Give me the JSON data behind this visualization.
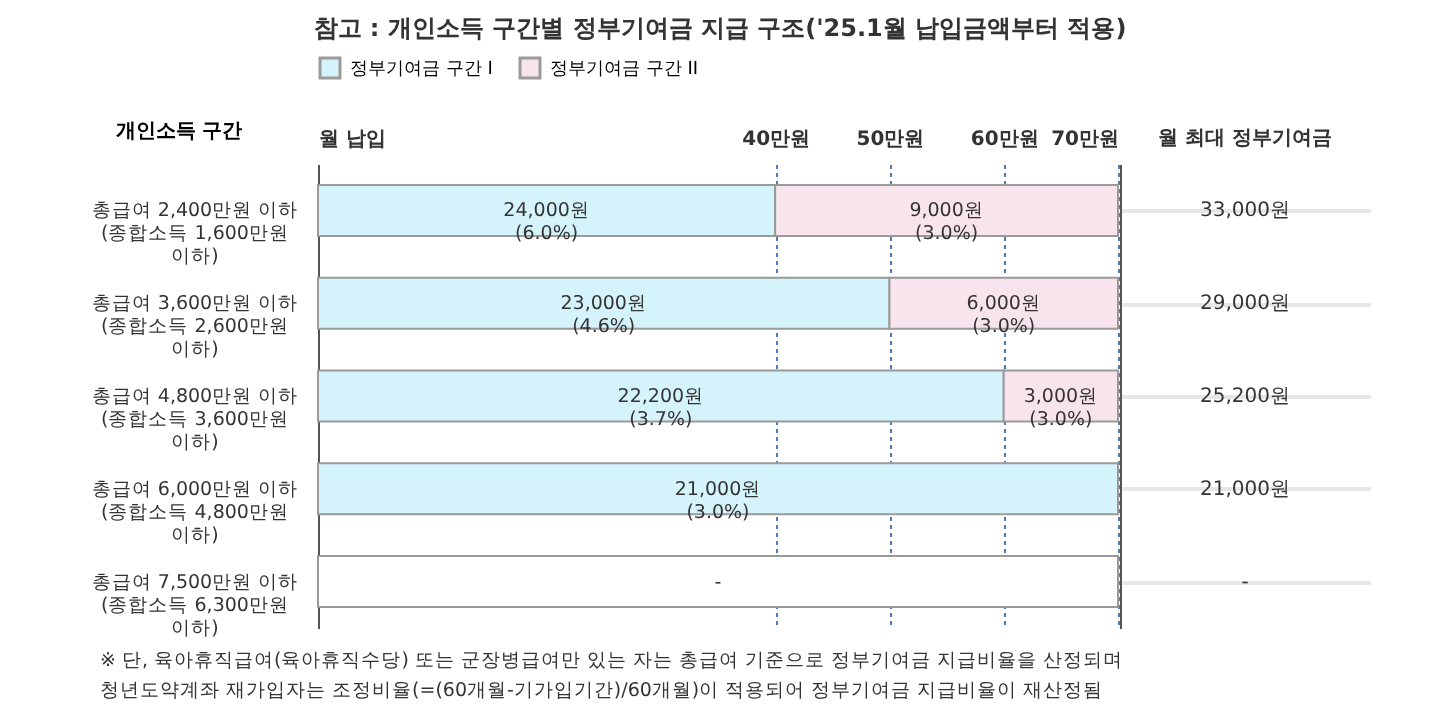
{
  "chart_data": [
    {
      "type": "bar",
      "orientation": "horizontal",
      "stacked": true,
      "title": "참고 : 개인소득 구간별 정부기여금 지급 구조('25.1월 납입금액부터 적용)",
      "ylabel": "개인소득 구간",
      "categories": [
        "총급여 2,400만원 이하 (종합소득 1,600만원 이하)",
        "총급여 3,600만원 이하 (종합소득 2,600만원 이하)",
        "총급여 4,800만원 이하 (종합소득 3,600만원 이하)",
        "총급여 6,000만원 이하 (종합소득 4,800만원 이하)",
        "총급여 7,500만원 이하 (종합소득 6,300만원 이하)"
      ],
      "series": [
        {
          "name": "정부기여금 구간 I",
          "color": "#d5f3fb",
          "values": [
            40,
            50,
            60,
            70,
            null
          ]
        },
        {
          "name": "정부기여금 구간 II",
          "color": "#f8e4ec",
          "values": [
            30,
            20,
            10,
            null,
            null
          ]
        },
        {
          "color": "#ffffff",
          "values": [
            null,
            null,
            null,
            null,
            70
          ]
        }
      ],
      "xlim": [
        0,
        70
      ],
      "xticks": [
        {
          "value": 0,
          "label": "월 납입"
        },
        {
          "value": 40,
          "label": "40만원"
        },
        {
          "value": 50,
          "label": "50만원"
        },
        {
          "value": 60,
          "label": "60만원"
        },
        {
          "value": 70,
          "label": "70만원"
        }
      ],
      "grid": "x",
      "legend": "top left",
      "annotations": [
        {
          "text": "24,000원\n(6.0%)",
          "x": 20,
          "y": "총급여 2,400만원 이하 (종합소득 1,600만원 이하)"
        },
        {
          "text": "9,000원\n(3.0%)",
          "x": 55,
          "y": "총급여 2,400만원 이하 (종합소득 1,600만원 이하)"
        },
        {
          "text": "23,000원\n(4.6%)",
          "x": 25,
          "y": "총급여 3,600만원 이하 (종합소득 2,600만원 이하)"
        },
        {
          "text": "6,000원\n(3.0%)",
          "x": 60,
          "y": "총급여 3,600만원 이하 (종합소득 2,600만원 이하)"
        },
        {
          "text": "22,200원\n(3.7%)",
          "x": 30,
          "y": "총급여 4,800만원 이하 (종합소득 3,600만원 이하)"
        },
        {
          "text": "3,000원\n(3.0%)",
          "x": 65,
          "y": "총급여 4,800만원 이하 (종합소득 3,600만원 이하)"
        },
        {
          "text": "21,000원\n(3.0%)",
          "x": 35,
          "y": "총급여 6,000만원 이하 (종합소득 4,800만원 이하)"
        },
        {
          "text": "-",
          "x": 35,
          "y": "총급여 7,500만원 이하 (종합소득 6,300만원 이하)"
        },
        "※ 단, 육아휴직급여(육아휴직수당) 또는 군장병급여만 있는 자는 총급여 기준으로 정부기여금 지급비율을 산정되며",
        "청년도약계좌 재가입자는 조정비율(=(60개월-기가입기간)/60개월)이 적용되어 정부기여금 지급비율이 재산정됨"
      ]
    },
    {
      "type": "other",
      "title": "월 최대 정부기여금",
      "annotations": [
        "33,000원",
        "29,000원",
        "25,200원",
        "21,000원",
        "-"
      ]
    }
  ]
}
